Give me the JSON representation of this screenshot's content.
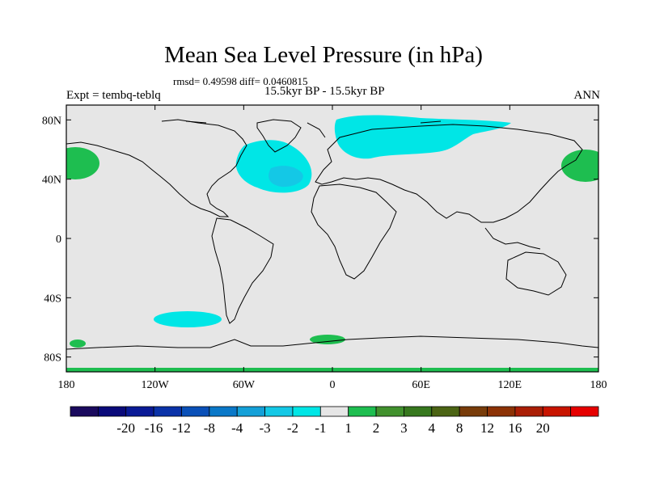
{
  "title": "Mean Sea Level Pressure (in hPa)",
  "stats": "rmsd= 0.49598 diff= 0.0460815",
  "left_label": "Expt = tembq-teblq",
  "center_label": "15.5kyr BP - 15.5kyr BP",
  "right_label": "ANN",
  "map": {
    "background_color": "#e6e6e6",
    "lat_ticks": [
      {
        "label": "80N",
        "lat": 80
      },
      {
        "label": "40N",
        "lat": 40
      },
      {
        "label": "0",
        "lat": 0
      },
      {
        "label": "40S",
        "lat": -40
      },
      {
        "label": "80S",
        "lat": -80
      }
    ],
    "lon_ticks": [
      {
        "label": "180",
        "lon": -180
      },
      {
        "label": "120W",
        "lon": -120
      },
      {
        "label": "60W",
        "lon": -60
      },
      {
        "label": "0",
        "lon": 0
      },
      {
        "label": "60E",
        "lon": 60
      },
      {
        "label": "120E",
        "lon": 120
      },
      {
        "label": "180",
        "lon": 180
      }
    ]
  },
  "colorbar": {
    "colors": [
      "#1a0a5e",
      "#0a0a7a",
      "#0a1a96",
      "#0a32a8",
      "#0a50b8",
      "#0a78c8",
      "#14a0d8",
      "#14c8e6",
      "#00e6e6",
      "#e6e6e6",
      "#1ebe50",
      "#41912d",
      "#37781e",
      "#4b6414",
      "#783c0a",
      "#8c3205",
      "#aa1e05",
      "#c81400",
      "#e60000"
    ],
    "labels": [
      "-20",
      "-16",
      "-12",
      "-8",
      "-4",
      "-3",
      "-2",
      "-1",
      "1",
      "2",
      "3",
      "4",
      "8",
      "12",
      "16",
      "20"
    ]
  }
}
